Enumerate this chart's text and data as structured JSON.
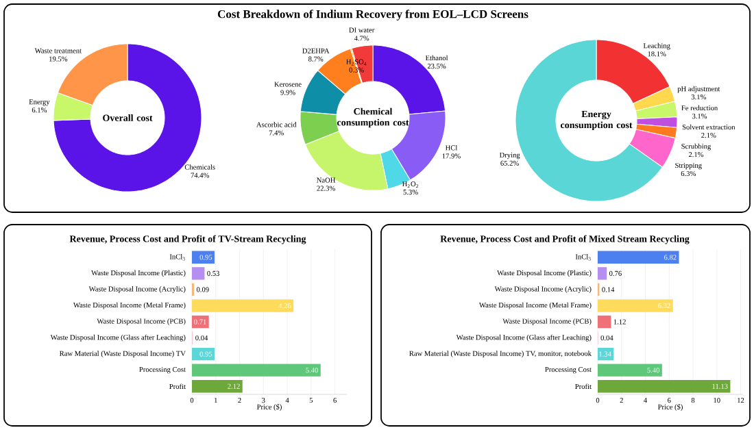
{
  "chart_data": [
    {
      "type": "donut",
      "categories": [
        "Chemicals",
        "Energy",
        "Waste treatment"
      ],
      "values": [
        74.4,
        6.1,
        19.5
      ],
      "value_labels": [
        "74.4%",
        "6.1%",
        "19.5%"
      ],
      "colors": [
        "#5b14e8",
        "#c8f76a",
        "#ff9548"
      ],
      "annotations": [
        "Overall cost"
      ]
    },
    {
      "type": "donut",
      "title": "Cost Breakdown of Indium Recovery from EOL–LCD Screens",
      "categories": [
        "Ethanol",
        "HCl",
        "H$_{2}$O$_{2}$",
        "NaOH",
        "Ascorbic acid",
        "Kerosene",
        "D2EHPA",
        "H$_{2}$SO$_{4}$",
        "DI water"
      ],
      "values": [
        23.5,
        17.9,
        5.3,
        22.3,
        7.4,
        9.9,
        8.7,
        0.3,
        4.7
      ],
      "value_labels": [
        "23.5%",
        "17.9%",
        "5.3%",
        "22.3%",
        "7.4%",
        "9.9%",
        "8.7%",
        "0.3%",
        "4.7%"
      ],
      "colors": [
        "#5b14e8",
        "#8a5cf6",
        "#4fd8e8",
        "#c6f56b",
        "#7ccf4f",
        "#0f8ea8",
        "#ff7f1e",
        "#f2c12e",
        "#f23a3a"
      ],
      "annotations": [
        "Chemical consumption cost"
      ]
    },
    {
      "type": "donut",
      "categories": [
        "Leaching",
        "pH adjustment",
        "Fe reduction",
        "Solvent extraction",
        "Scrubbing",
        "Stripping",
        "Drying"
      ],
      "values": [
        18.1,
        3.1,
        3.1,
        2.1,
        2.1,
        6.3,
        65.2
      ],
      "value_labels": [
        "18.1%",
        "3.1%",
        "3.1%",
        "2.1%",
        "2.1%",
        "6.3%",
        "65.2%"
      ],
      "colors": [
        "#f23232",
        "#ffd84d",
        "#c8f76a",
        "#c04fe0",
        "#ff7a1e",
        "#ff66cc",
        "#5ad6d6"
      ],
      "annotations": [
        "Energy consumption cost"
      ]
    },
    {
      "type": "bar",
      "orientation": "horizontal",
      "title": "Revenue, Process Cost and Profit of TV-Stream Recycling",
      "xlabel": "Price ($)",
      "categories": [
        "InCl$_{3}$",
        "Waste Disposal Income (Plastic)",
        "Waste Disposal Income (Acrylic)",
        "Waste Disposal Income (Metal Frame)",
        "Waste Disposal Income (PCB)",
        "Waste Disposal Income (Glass after Leaching)",
        "Raw Material (Waste Disposal Income) TV",
        "Processing Cost",
        "Profit"
      ],
      "values": [
        0.95,
        0.53,
        0.09,
        4.26,
        0.71,
        0.04,
        0.95,
        5.4,
        2.12
      ],
      "value_labels": [
        "0.95",
        "0.53",
        "0.09",
        "4.26",
        "0.71",
        "0.04",
        "0.95",
        "5.40",
        "2.12"
      ],
      "colors": [
        "#4c7ff0",
        "#b48ef0",
        "#f5b87a",
        "#ffdb5c",
        "#f07078",
        "#f9c6dc",
        "#5cd6d6",
        "#5ec77a",
        "#6fa83a"
      ],
      "xlim": [
        0,
        6.5
      ],
      "xticks": [
        0,
        1,
        2,
        3,
        4,
        5,
        6
      ],
      "grid": "x"
    },
    {
      "type": "bar",
      "orientation": "horizontal",
      "title": "Revenue, Process Cost and Profit of Mixed Stream Recycling",
      "xlabel": "Price ($)",
      "categories": [
        "InCl$_{3}$",
        "Waste Disposal Income (Plastic)",
        "Waste Disposal Income (Acrylic)",
        "Waste Disposal Income (Metal Frame)",
        "Waste Disposal Income (PCB)",
        "Waste Disposal Income (Glass after Leaching)",
        "Raw Material (Waste Disposal Income) TV, monitor, notebook",
        "Processing Cost",
        "Profit"
      ],
      "values": [
        6.82,
        0.76,
        0.14,
        6.32,
        1.12,
        0.04,
        1.34,
        5.4,
        11.13
      ],
      "value_labels": [
        "6.82",
        "0.76",
        "0.14",
        "6.32",
        "1.12",
        "0.04",
        "1.34",
        "5.40",
        "11.13"
      ],
      "colors": [
        "#4c7ff0",
        "#b48ef0",
        "#f5b87a",
        "#ffdb5c",
        "#f07078",
        "#f9c6dc",
        "#5cd6d6",
        "#5ec77a",
        "#6fa83a"
      ],
      "xlim": [
        0,
        12.2
      ],
      "xticks": [
        0,
        2,
        4,
        6,
        8,
        10,
        12
      ],
      "grid": "x"
    }
  ]
}
